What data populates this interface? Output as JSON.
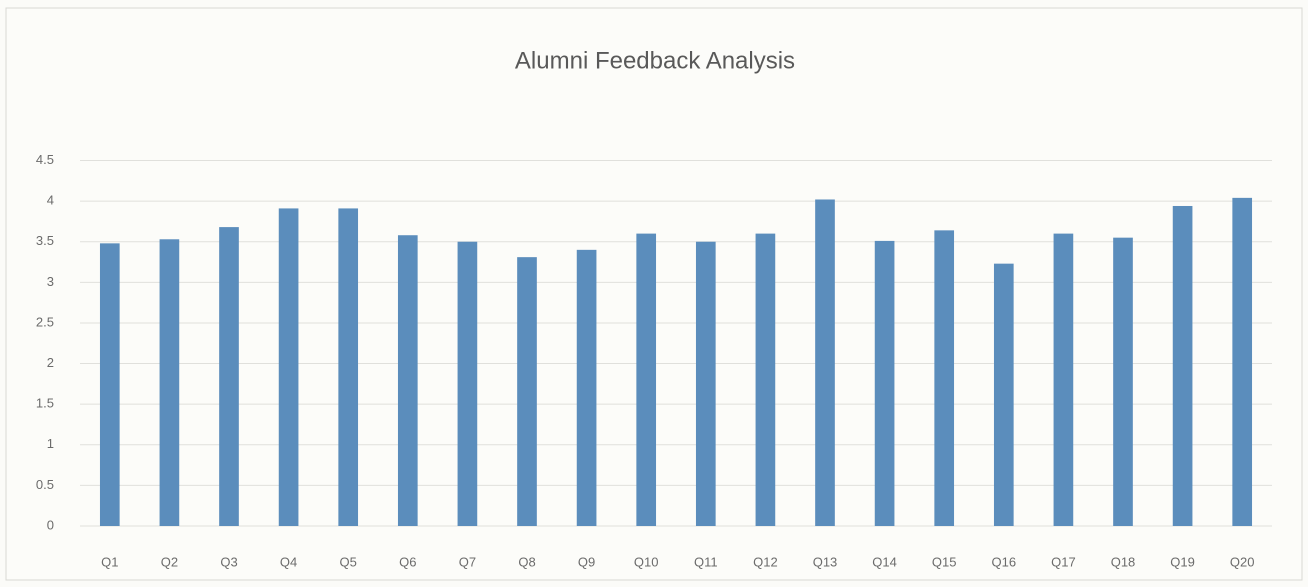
{
  "chart_data": {
    "type": "bar",
    "title": "Alumni Feedback Analysis",
    "categories": [
      "Q1",
      "Q2",
      "Q3",
      "Q4",
      "Q5",
      "Q6",
      "Q7",
      "Q8",
      "Q9",
      "Q10",
      "Q11",
      "Q12",
      "Q13",
      "Q14",
      "Q15",
      "Q16",
      "Q17",
      "Q18",
      "Q19",
      "Q20"
    ],
    "values": [
      3.48,
      3.53,
      3.68,
      3.91,
      3.91,
      3.58,
      3.5,
      3.31,
      3.4,
      3.6,
      3.5,
      3.6,
      4.02,
      3.51,
      3.64,
      3.23,
      3.6,
      3.55,
      3.94,
      4.04
    ],
    "color": "#5b8dbc",
    "ylim": [
      0,
      4.5
    ],
    "yticks": [
      0,
      0.5,
      1,
      1.5,
      2,
      2.5,
      3,
      3.5,
      4,
      4.5
    ],
    "grid": true
  }
}
